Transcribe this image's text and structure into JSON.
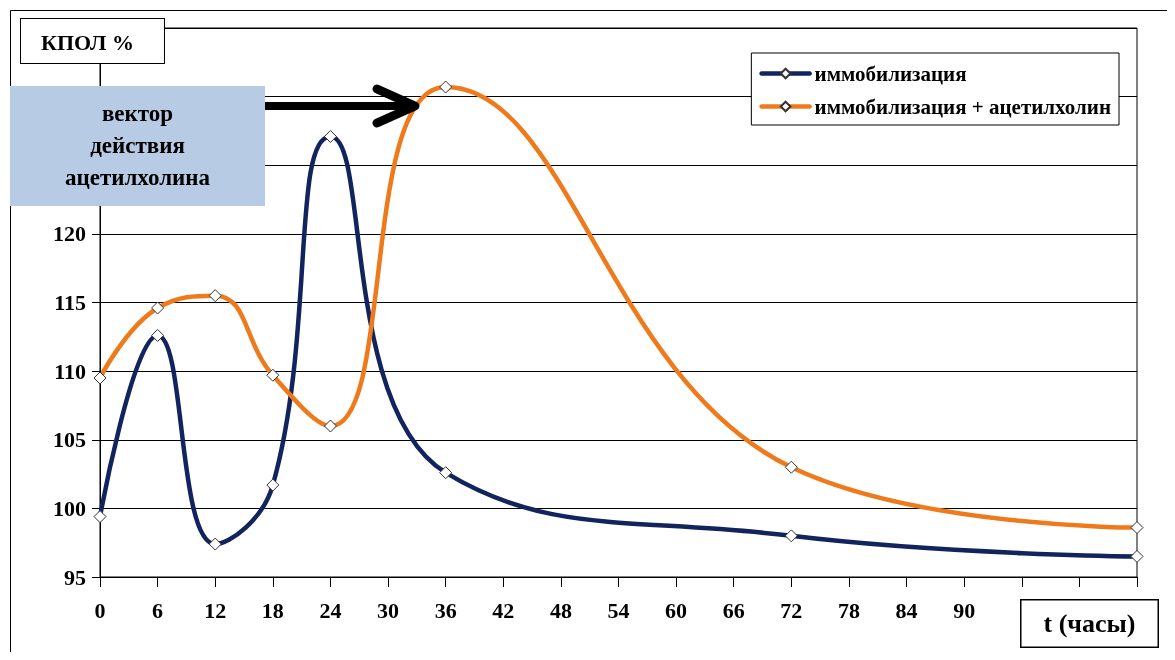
{
  "chart_data": {
    "type": "line",
    "xlabel": "t (часы)",
    "ylabel": "КПОЛ %",
    "annotations": [
      "вектор\nдействия\nацетилхолина"
    ],
    "series": [
      {
        "name": "иммобилизация",
        "color": "#12245e",
        "x": [
          0,
          6,
          12,
          18,
          24,
          36,
          72,
          108
        ],
        "values": [
          99.4,
          112.6,
          97.4,
          101.7,
          127.1,
          102.6,
          98.0,
          96.5
        ]
      },
      {
        "name": "иммобилизация + ацетилхолин",
        "color": "#ef7a1c",
        "x": [
          0,
          6,
          12,
          18,
          24,
          36,
          72,
          108
        ],
        "values": [
          109.5,
          114.6,
          115.5,
          109.7,
          106.0,
          130.7,
          103.0,
          98.6
        ]
      }
    ],
    "xlim": [
      0,
      108
    ],
    "xticks": [
      0,
      6,
      12,
      18,
      24,
      30,
      36,
      42,
      48,
      54,
      60,
      66,
      72,
      78,
      84,
      90,
      {
        "value": 96,
        "label": null
      },
      {
        "value": 102,
        "label": null
      },
      {
        "value": 108,
        "label": null
      }
    ],
    "ylim": [
      95,
      135
    ],
    "yticks": [
      95,
      100,
      105,
      110,
      115,
      120,
      {
        "value": 125,
        "label": null
      },
      {
        "value": 130,
        "label": null
      },
      {
        "value": 135,
        "label": null
      }
    ],
    "grid": "y",
    "legend": "top right",
    "marker": "diamond",
    "line_style": "solid"
  }
}
